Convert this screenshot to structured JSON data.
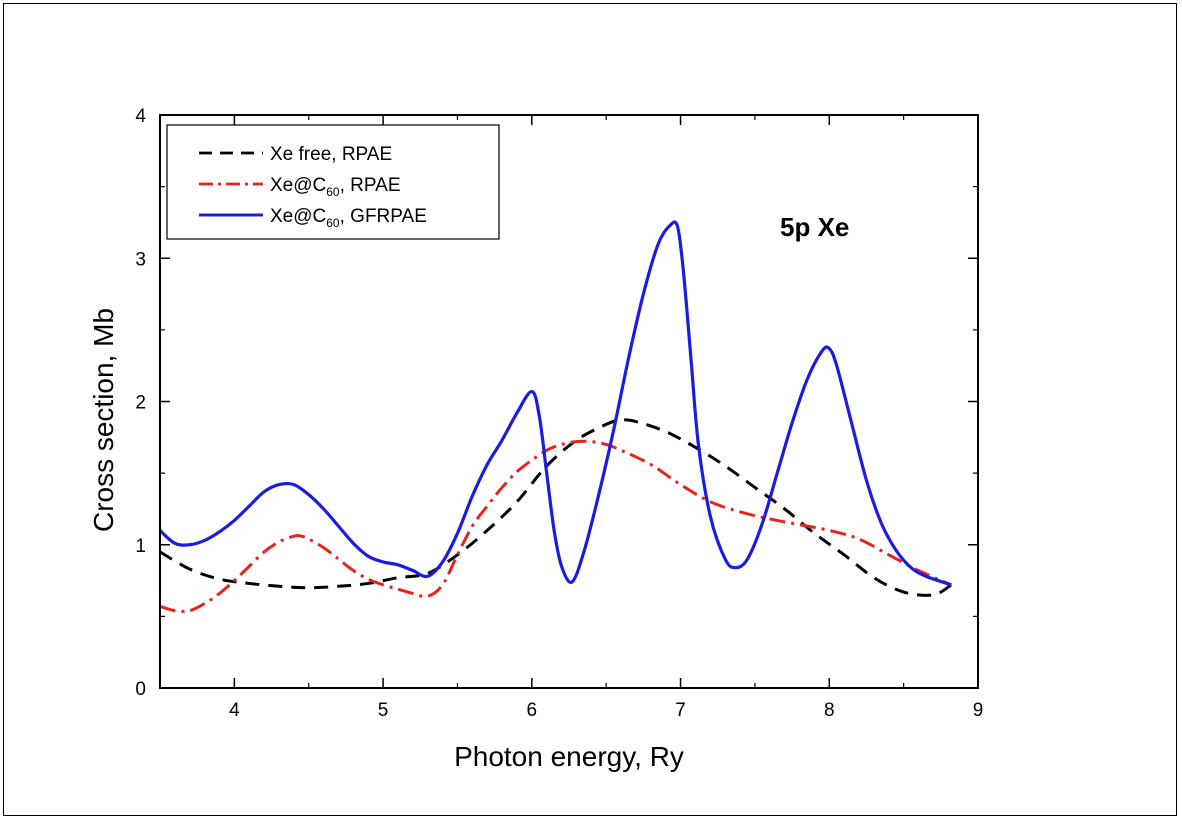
{
  "chart_data": {
    "type": "line",
    "title": "",
    "xlabel": "Photon energy, Ry",
    "ylabel": "Cross section, Mb",
    "xlim": [
      3.5,
      9
    ],
    "ylim": [
      0,
      4
    ],
    "x_ticks": [
      4,
      5,
      6,
      7,
      8,
      9
    ],
    "y_ticks": [
      0,
      1,
      2,
      3,
      4
    ],
    "grid": false,
    "legend_position": "top-left",
    "annotation": "5p Xe",
    "series": [
      {
        "name": "Xe free, RPAE",
        "legend_text": "Xe free, RPAE",
        "color": "#000000",
        "style": "dashed",
        "x": [
          3.5,
          3.7,
          3.9,
          4.1,
          4.3,
          4.5,
          4.7,
          4.9,
          5.1,
          5.3,
          5.5,
          5.7,
          5.9,
          6.1,
          6.3,
          6.5,
          6.6,
          6.7,
          6.9,
          7.1,
          7.3,
          7.5,
          7.7,
          7.9,
          8.1,
          8.3,
          8.5,
          8.7,
          8.82
        ],
        "y": [
          0.95,
          0.83,
          0.76,
          0.73,
          0.71,
          0.7,
          0.71,
          0.73,
          0.77,
          0.8,
          0.93,
          1.1,
          1.3,
          1.55,
          1.73,
          1.84,
          1.87,
          1.86,
          1.79,
          1.68,
          1.55,
          1.4,
          1.25,
          1.08,
          0.93,
          0.77,
          0.67,
          0.65,
          0.72
        ]
      },
      {
        "name": "Xe@C60, RPAE",
        "legend_text": "Xe@C",
        "legend_sub": "60",
        "legend_suffix": ", RPAE",
        "color": "#e8231c",
        "style": "dashdot",
        "x": [
          3.5,
          3.6,
          3.7,
          3.8,
          3.9,
          4.0,
          4.1,
          4.2,
          4.3,
          4.4,
          4.45,
          4.5,
          4.6,
          4.7,
          4.8,
          4.9,
          5.0,
          5.1,
          5.2,
          5.3,
          5.4,
          5.5,
          5.6,
          5.7,
          5.8,
          5.9,
          6.0,
          6.1,
          6.2,
          6.3,
          6.4,
          6.5,
          6.6,
          6.8,
          7.0,
          7.2,
          7.4,
          7.6,
          7.8,
          8.0,
          8.2,
          8.4,
          8.6,
          8.82
        ],
        "y": [
          0.57,
          0.54,
          0.54,
          0.59,
          0.66,
          0.75,
          0.85,
          0.95,
          1.02,
          1.06,
          1.06,
          1.04,
          0.98,
          0.9,
          0.82,
          0.76,
          0.72,
          0.69,
          0.66,
          0.64,
          0.72,
          0.93,
          1.13,
          1.27,
          1.4,
          1.51,
          1.59,
          1.66,
          1.7,
          1.72,
          1.72,
          1.7,
          1.66,
          1.56,
          1.42,
          1.3,
          1.23,
          1.18,
          1.14,
          1.1,
          1.04,
          0.93,
          0.82,
          0.72
        ]
      },
      {
        "name": "Xe@C60, GFRPAE",
        "legend_text": "Xe@C",
        "legend_sub": "60",
        "legend_suffix": ", GFRPAE",
        "color": "#1c1ce0",
        "style": "solid",
        "x": [
          3.5,
          3.6,
          3.7,
          3.8,
          3.9,
          4.0,
          4.1,
          4.2,
          4.3,
          4.4,
          4.5,
          4.6,
          4.7,
          4.8,
          4.9,
          5.0,
          5.1,
          5.2,
          5.3,
          5.4,
          5.5,
          5.6,
          5.7,
          5.8,
          5.9,
          6.0,
          6.05,
          6.1,
          6.15,
          6.2,
          6.27,
          6.35,
          6.45,
          6.55,
          6.65,
          6.75,
          6.85,
          6.93,
          6.98,
          7.02,
          7.07,
          7.12,
          7.2,
          7.3,
          7.37,
          7.45,
          7.55,
          7.65,
          7.75,
          7.85,
          7.95,
          8.0,
          8.05,
          8.15,
          8.25,
          8.35,
          8.45,
          8.55,
          8.65,
          8.82
        ],
        "y": [
          1.1,
          1.01,
          1.0,
          1.03,
          1.09,
          1.17,
          1.27,
          1.37,
          1.42,
          1.42,
          1.35,
          1.25,
          1.13,
          1.01,
          0.92,
          0.88,
          0.86,
          0.82,
          0.78,
          0.88,
          1.08,
          1.34,
          1.56,
          1.73,
          1.92,
          2.07,
          1.9,
          1.5,
          1.1,
          0.85,
          0.74,
          0.95,
          1.35,
          1.8,
          2.3,
          2.75,
          3.1,
          3.23,
          3.22,
          2.9,
          2.3,
          1.7,
          1.2,
          0.9,
          0.84,
          0.9,
          1.15,
          1.5,
          1.85,
          2.15,
          2.35,
          2.37,
          2.25,
          1.85,
          1.45,
          1.15,
          0.96,
          0.84,
          0.78,
          0.72
        ]
      }
    ]
  }
}
